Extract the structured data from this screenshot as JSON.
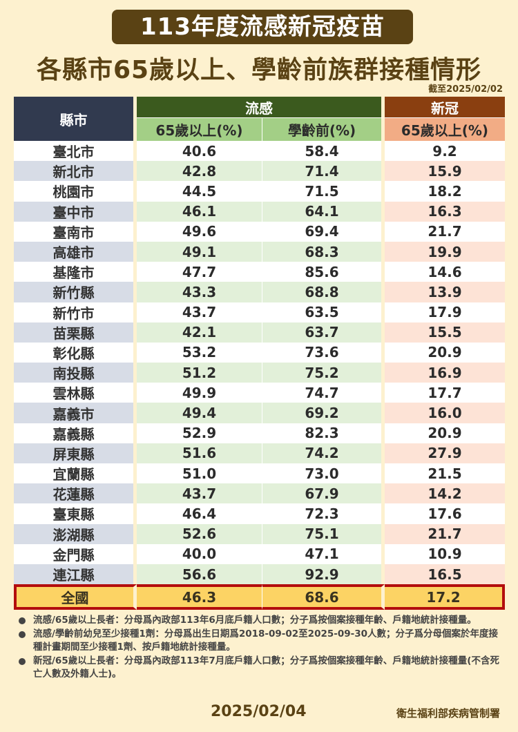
{
  "title": "113年度流感新冠疫苗",
  "subtitle": "各縣市65歲以上、學齡前族群接種情形",
  "as_of": "截至2025/02/02",
  "table": {
    "header": {
      "county": "縣市",
      "flu_group": "流感",
      "covid_group": "新冠",
      "flu_65": "65歲以上(%)",
      "flu_preschool": "學齡前(%)",
      "covid_65": "65歲以上(%)"
    },
    "rows": [
      {
        "county": "臺北市",
        "flu_65": "40.6",
        "flu_preschool": "58.4",
        "covid_65": "9.2"
      },
      {
        "county": "新北市",
        "flu_65": "42.8",
        "flu_preschool": "71.4",
        "covid_65": "15.9"
      },
      {
        "county": "桃園市",
        "flu_65": "44.5",
        "flu_preschool": "71.5",
        "covid_65": "18.2"
      },
      {
        "county": "臺中市",
        "flu_65": "46.1",
        "flu_preschool": "64.1",
        "covid_65": "16.3"
      },
      {
        "county": "臺南市",
        "flu_65": "49.6",
        "flu_preschool": "69.4",
        "covid_65": "21.7"
      },
      {
        "county": "高雄市",
        "flu_65": "49.1",
        "flu_preschool": "68.3",
        "covid_65": "19.9"
      },
      {
        "county": "基隆市",
        "flu_65": "47.7",
        "flu_preschool": "85.6",
        "covid_65": "14.6"
      },
      {
        "county": "新竹縣",
        "flu_65": "43.3",
        "flu_preschool": "68.8",
        "covid_65": "13.9"
      },
      {
        "county": "新竹市",
        "flu_65": "43.7",
        "flu_preschool": "63.5",
        "covid_65": "17.9"
      },
      {
        "county": "苗栗縣",
        "flu_65": "42.1",
        "flu_preschool": "63.7",
        "covid_65": "15.5"
      },
      {
        "county": "彰化縣",
        "flu_65": "53.2",
        "flu_preschool": "73.6",
        "covid_65": "20.9"
      },
      {
        "county": "南投縣",
        "flu_65": "51.2",
        "flu_preschool": "75.2",
        "covid_65": "16.9"
      },
      {
        "county": "雲林縣",
        "flu_65": "49.9",
        "flu_preschool": "74.7",
        "covid_65": "17.7"
      },
      {
        "county": "嘉義市",
        "flu_65": "49.4",
        "flu_preschool": "69.2",
        "covid_65": "16.0"
      },
      {
        "county": "嘉義縣",
        "flu_65": "52.9",
        "flu_preschool": "82.3",
        "covid_65": "20.9"
      },
      {
        "county": "屏東縣",
        "flu_65": "51.6",
        "flu_preschool": "74.2",
        "covid_65": "27.9"
      },
      {
        "county": "宜蘭縣",
        "flu_65": "51.0",
        "flu_preschool": "73.0",
        "covid_65": "21.5"
      },
      {
        "county": "花蓮縣",
        "flu_65": "43.7",
        "flu_preschool": "67.9",
        "covid_65": "14.2"
      },
      {
        "county": "臺東縣",
        "flu_65": "46.4",
        "flu_preschool": "72.3",
        "covid_65": "17.6"
      },
      {
        "county": "澎湖縣",
        "flu_65": "52.6",
        "flu_preschool": "75.1",
        "covid_65": "21.7"
      },
      {
        "county": "金門縣",
        "flu_65": "40.0",
        "flu_preschool": "47.1",
        "covid_65": "10.9"
      },
      {
        "county": "連江縣",
        "flu_65": "56.6",
        "flu_preschool": "92.9",
        "covid_65": "16.5"
      }
    ],
    "total": {
      "county": "全國",
      "flu_65": "46.3",
      "flu_preschool": "68.6",
      "covid_65": "17.2"
    }
  },
  "notes": [
    "流感/65歲以上長者：分母爲內政部113年6月底戶籍人口數；分子爲按個案接種年齡、戶籍地統計接種量。",
    "流感/學齡前幼兒至少接種1劑：分母爲出生日期爲2018-09-02至2025-09-30人數；分子爲分母個案於年度接種計畫期間至少接種1劑、按戶籍地統計接種量。",
    "新冠/65歲以上長者：分母爲內政部113年7月底戶籍人口數；分子爲按個案接種年齡、戶籍地統計接種量(不含死亡人數及外籍人士)。"
  ],
  "footer": {
    "date": "2025/02/04",
    "organization": "衛生福利部疾病管制署"
  },
  "colors": {
    "background": "#fdf1cf",
    "title_bg": "#5a4214",
    "county_header": "#313a4f",
    "flu_header": "#3b5a1e",
    "flu_subheader": "#a3cf86",
    "covid_header": "#8a3f10",
    "covid_subheader": "#f2ac85",
    "total_row": "#fcd364",
    "total_border": "#b30d0d"
  },
  "chart_data": {
    "type": "table",
    "title": "113年度流感新冠疫苗 各縣市65歲以上、學齡前族群接種情形",
    "subtitle": "截至2025/02/02",
    "columns": [
      "縣市",
      "流感 65歲以上(%)",
      "流感 學齡前(%)",
      "新冠 65歲以上(%)"
    ],
    "categories": [
      "臺北市",
      "新北市",
      "桃園市",
      "臺中市",
      "臺南市",
      "高雄市",
      "基隆市",
      "新竹縣",
      "新竹市",
      "苗栗縣",
      "彰化縣",
      "南投縣",
      "雲林縣",
      "嘉義市",
      "嘉義縣",
      "屏東縣",
      "宜蘭縣",
      "花蓮縣",
      "臺東縣",
      "澎湖縣",
      "金門縣",
      "連江縣",
      "全國"
    ],
    "series": [
      {
        "name": "流感 65歲以上(%)",
        "values": [
          40.6,
          42.8,
          44.5,
          46.1,
          49.6,
          49.1,
          47.7,
          43.3,
          43.7,
          42.1,
          53.2,
          51.2,
          49.9,
          49.4,
          52.9,
          51.6,
          51.0,
          43.7,
          46.4,
          52.6,
          40.0,
          56.6,
          46.3
        ]
      },
      {
        "name": "流感 學齡前(%)",
        "values": [
          58.4,
          71.4,
          71.5,
          64.1,
          69.4,
          68.3,
          85.6,
          68.8,
          63.5,
          63.7,
          73.6,
          75.2,
          74.7,
          69.2,
          82.3,
          74.2,
          73.0,
          67.9,
          72.3,
          75.1,
          47.1,
          92.9,
          68.6
        ]
      },
      {
        "name": "新冠 65歲以上(%)",
        "values": [
          9.2,
          15.9,
          18.2,
          16.3,
          21.7,
          19.9,
          14.6,
          13.9,
          17.9,
          15.5,
          20.9,
          16.9,
          17.7,
          16.0,
          20.9,
          27.9,
          21.5,
          14.2,
          17.6,
          21.7,
          10.9,
          16.5,
          17.2
        ]
      }
    ]
  }
}
